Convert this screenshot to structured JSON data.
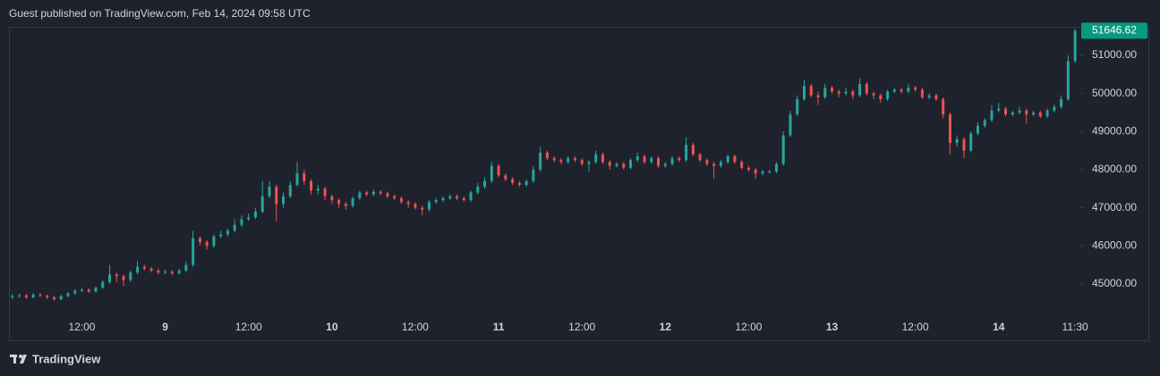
{
  "chart_data": {
    "type": "candlestick",
    "title": "Guest published on TradingView.com, Feb 14, 2024 09:58 UTC",
    "footer": "TradingView",
    "last_price": 51646.62,
    "up_color": "#26a69a",
    "down_color": "#ef5350",
    "last_price_color": "#089981",
    "ylim": [
      44130,
      51750
    ],
    "yticks": [
      {
        "value": 45000,
        "label": "45000.00"
      },
      {
        "value": 46000,
        "label": "46000.00"
      },
      {
        "value": 47000,
        "label": "47000.00"
      },
      {
        "value": 48000,
        "label": "48000.00"
      },
      {
        "value": 49000,
        "label": "49000.00"
      },
      {
        "value": 50000,
        "label": "50000.00"
      },
      {
        "value": 51000,
        "label": "51000.00"
      }
    ],
    "grid": false,
    "categories": [
      null,
      null,
      null,
      null,
      null,
      null,
      null,
      null,
      null,
      null,
      "12:00",
      null,
      null,
      null,
      null,
      null,
      null,
      null,
      null,
      null,
      null,
      null,
      "9",
      null,
      null,
      null,
      null,
      null,
      null,
      null,
      null,
      null,
      null,
      null,
      "12:00",
      null,
      null,
      null,
      null,
      null,
      null,
      null,
      null,
      null,
      null,
      null,
      "10",
      null,
      null,
      null,
      null,
      null,
      null,
      null,
      null,
      null,
      null,
      null,
      "12:00",
      null,
      null,
      null,
      null,
      null,
      null,
      null,
      null,
      null,
      null,
      null,
      "11",
      null,
      null,
      null,
      null,
      null,
      null,
      null,
      null,
      null,
      null,
      null,
      "12:00",
      null,
      null,
      null,
      null,
      null,
      null,
      null,
      null,
      null,
      null,
      null,
      "12",
      null,
      null,
      null,
      null,
      null,
      null,
      null,
      null,
      null,
      null,
      null,
      "12:00",
      null,
      null,
      null,
      null,
      null,
      null,
      null,
      null,
      null,
      null,
      null,
      "13",
      null,
      null,
      null,
      null,
      null,
      null,
      null,
      null,
      null,
      null,
      null,
      "12:00",
      null,
      null,
      null,
      null,
      null,
      null,
      null,
      null,
      null,
      null,
      null,
      "14",
      null,
      null,
      null,
      null,
      null,
      null,
      null,
      null,
      null,
      null,
      "11:30"
    ],
    "open": [
      44650,
      44680,
      44700,
      44650,
      44720,
      44690,
      44650,
      44600,
      44680,
      44750,
      44820,
      44850,
      44800,
      44900,
      45050,
      45250,
      45200,
      45100,
      45300,
      45450,
      45400,
      45350,
      45300,
      45320,
      45280,
      45350,
      45500,
      46200,
      46100,
      46000,
      46250,
      46300,
      46400,
      46550,
      46700,
      46750,
      46900,
      47300,
      47550,
      47100,
      47300,
      47600,
      47900,
      47700,
      47450,
      47500,
      47300,
      47200,
      47100,
      47050,
      47250,
      47400,
      47350,
      47420,
      47380,
      47300,
      47250,
      47150,
      47100,
      47000,
      46950,
      47150,
      47200,
      47250,
      47300,
      47250,
      47200,
      47400,
      47550,
      47700,
      48100,
      47850,
      47750,
      47650,
      47600,
      47700,
      48000,
      48450,
      48300,
      48250,
      48200,
      48300,
      48250,
      48150,
      48200,
      48400,
      48200,
      48100,
      48150,
      48050,
      48250,
      48350,
      48200,
      48300,
      48100,
      48150,
      48300,
      48250,
      48650,
      48400,
      48250,
      48150,
      48100,
      48200,
      48350,
      48200,
      48050,
      48000,
      47900,
      47950,
      47950,
      48150,
      48900,
      49450,
      49850,
      50200,
      49950,
      49900,
      50150,
      50050,
      50000,
      50050,
      49950,
      50250,
      50000,
      49950,
      49850,
      50050,
      50100,
      50050,
      50150,
      50100,
      49900,
      49950,
      49850,
      49450,
      48700,
      48800,
      48500,
      48950,
      49150,
      49300,
      49550,
      49600,
      49450,
      49500,
      49550,
      49450,
      49500,
      49400,
      49550,
      49650,
      49850,
      50850
    ],
    "high": [
      44730,
      44750,
      44740,
      44760,
      44760,
      44720,
      44690,
      44720,
      44790,
      44860,
      44900,
      44890,
      44940,
      45100,
      45500,
      45300,
      45250,
      45350,
      45600,
      45500,
      45450,
      45400,
      45370,
      45360,
      45400,
      45600,
      46400,
      46250,
      46150,
      46300,
      46400,
      46450,
      46700,
      46800,
      46850,
      47000,
      47700,
      47700,
      47600,
      47400,
      47700,
      48200,
      48000,
      47750,
      47600,
      47550,
      47350,
      47250,
      47150,
      47300,
      47450,
      47450,
      47470,
      47460,
      47420,
      47350,
      47300,
      47200,
      47150,
      47050,
      47200,
      47260,
      47300,
      47350,
      47350,
      47300,
      47450,
      47650,
      47800,
      48200,
      48150,
      47900,
      47800,
      47700,
      47750,
      48100,
      48600,
      48500,
      48350,
      48300,
      48350,
      48350,
      48300,
      48250,
      48500,
      48450,
      48250,
      48200,
      48200,
      48300,
      48450,
      48400,
      48350,
      48350,
      48200,
      48350,
      48350,
      48850,
      48700,
      48450,
      48300,
      48200,
      48250,
      48400,
      48400,
      48250,
      48100,
      48050,
      48000,
      48000,
      48200,
      49000,
      49550,
      49950,
      50350,
      50250,
      50050,
      50250,
      50200,
      50100,
      50150,
      50100,
      50400,
      50300,
      50050,
      50000,
      50100,
      50150,
      50150,
      50250,
      50200,
      50150,
      50000,
      50000,
      49900,
      49500,
      48900,
      48850,
      49000,
      49250,
      49350,
      49700,
      49750,
      49650,
      49550,
      49650,
      49600,
      49550,
      49550,
      49600,
      49700,
      49950,
      51000,
      51700
    ],
    "low": [
      44600,
      44630,
      44610,
      44620,
      44650,
      44600,
      44560,
      44570,
      44650,
      44720,
      44790,
      44760,
      44770,
      44870,
      45000,
      45050,
      44950,
      45050,
      45250,
      45350,
      45300,
      45250,
      45260,
      45230,
      45240,
      45300,
      45450,
      46000,
      45900,
      45950,
      46200,
      46250,
      46350,
      46500,
      46650,
      46700,
      46850,
      47250,
      46650,
      47000,
      47250,
      47550,
      47600,
      47350,
      47350,
      47200,
      47100,
      47000,
      46950,
      47000,
      47200,
      47300,
      47300,
      47320,
      47250,
      47200,
      47100,
      47000,
      46950,
      46800,
      46900,
      47100,
      47150,
      47200,
      47200,
      47150,
      47150,
      47350,
      47500,
      47650,
      47800,
      47700,
      47600,
      47550,
      47550,
      47650,
      47950,
      48250,
      48200,
      48150,
      48150,
      48200,
      48100,
      47950,
      48150,
      48150,
      48000,
      48050,
      48000,
      48000,
      48200,
      48150,
      48150,
      48050,
      48050,
      48100,
      48200,
      48200,
      48350,
      48200,
      48100,
      47750,
      48050,
      48150,
      48150,
      48000,
      47950,
      47750,
      47850,
      47900,
      47900,
      48100,
      48850,
      49400,
      49800,
      49900,
      49700,
      49850,
      50000,
      49900,
      49950,
      49850,
      49900,
      49950,
      49850,
      49750,
      49800,
      50000,
      50000,
      50000,
      50050,
      49850,
      49850,
      49800,
      49350,
      48400,
      48600,
      48300,
      48450,
      48900,
      49100,
      49250,
      49500,
      49400,
      49400,
      49450,
      49200,
      49400,
      49350,
      49350,
      49500,
      49600,
      49800,
      50800
    ],
    "close": [
      44680,
      44700,
      44650,
      44720,
      44690,
      44650,
      44600,
      44680,
      44750,
      44820,
      44850,
      44800,
      44900,
      45050,
      45250,
      45200,
      45100,
      45300,
      45450,
      45400,
      45350,
      45300,
      45320,
      45280,
      45350,
      45500,
      46200,
      46100,
      46000,
      46250,
      46300,
      46400,
      46550,
      46700,
      46750,
      46900,
      47300,
      47550,
      47100,
      47300,
      47600,
      47900,
      47700,
      47450,
      47500,
      47300,
      47200,
      47100,
      47050,
      47250,
      47400,
      47350,
      47420,
      47380,
      47300,
      47250,
      47150,
      47100,
      47000,
      46950,
      47150,
      47200,
      47250,
      47300,
      47250,
      47200,
      47400,
      47550,
      47700,
      48100,
      47850,
      47750,
      47650,
      47600,
      47700,
      48000,
      48450,
      48300,
      48250,
      48200,
      48300,
      48250,
      48150,
      48200,
      48400,
      48200,
      48100,
      48150,
      48050,
      48250,
      48350,
      48200,
      48300,
      48100,
      48150,
      48300,
      48250,
      48650,
      48400,
      48250,
      48150,
      48100,
      48200,
      48350,
      48200,
      48050,
      48000,
      47900,
      47950,
      47950,
      48150,
      48900,
      49450,
      49850,
      50200,
      49950,
      49900,
      50150,
      50050,
      50000,
      50050,
      49950,
      50250,
      50000,
      49950,
      49850,
      50050,
      50100,
      50050,
      50150,
      50100,
      49900,
      49950,
      49850,
      49450,
      48700,
      48800,
      48500,
      48950,
      49150,
      49300,
      49550,
      49600,
      49450,
      49500,
      49550,
      49450,
      49500,
      49400,
      49550,
      49650,
      49850,
      50850,
      51646.62
    ]
  }
}
